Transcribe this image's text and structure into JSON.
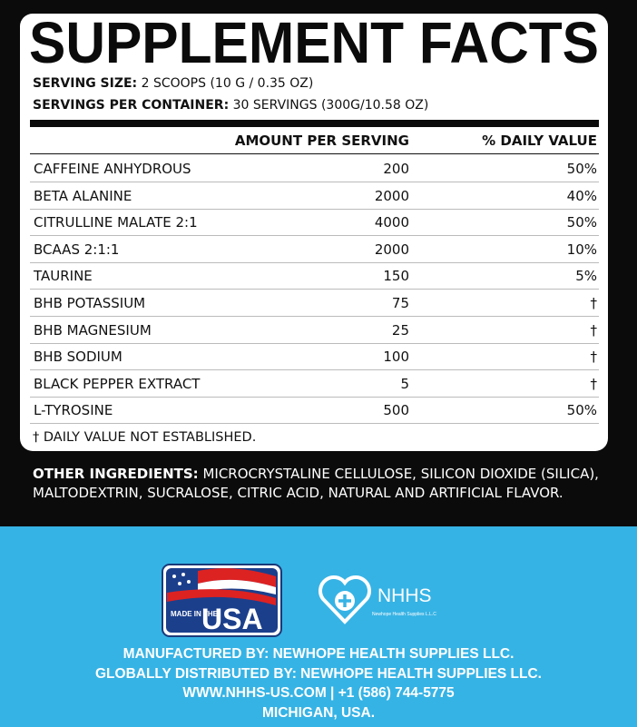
{
  "title": "SUPPLEMENT FACTS",
  "serving_size": {
    "label": "SERVING SIZE:",
    "value": "2 SCOOPS (10 G / 0.35 OZ)"
  },
  "servings_per_container": {
    "label": "SERVINGS PER CONTAINER:",
    "value": "30 SERVINGS (300G/10.58 OZ)"
  },
  "table": {
    "header": [
      "AMOUNT PER SERVING",
      "% DAILY VALUE"
    ],
    "rows": [
      [
        "CAFFEINE ANHYDROUS",
        200,
        "50%"
      ],
      [
        "BETA ALANINE",
        2000,
        "40%"
      ],
      [
        "CITRULLINE MALATE 2:1",
        4000,
        "50%"
      ],
      [
        "BCAAS 2:1:1",
        2000,
        "10%"
      ],
      [
        "TAURINE",
        150,
        "5%"
      ],
      [
        "BHB POTASSIUM",
        75,
        "†"
      ],
      [
        "BHB MAGNESIUM",
        25,
        "†"
      ],
      [
        "BHB SODIUM",
        100,
        "†"
      ],
      [
        "BLACK PEPPER EXTRACT",
        5,
        "†"
      ],
      [
        "L-TYROSINE",
        500,
        "50%"
      ]
    ]
  },
  "footnote": "† DAILY VALUE NOT ESTABLISHED.",
  "other_ingredients": {
    "label": "OTHER INGREDIENTS:",
    "text": "MICROCRYSTALINE CELLULOSE, SILICON DIOXIDE (SILICA), MALTODEXTRIN, SUCRALOSE, CITRIC ACID, NATURAL AND ARTIFICIAL FLAVOR."
  },
  "badge": {
    "made_in": "MADE IN THE",
    "country": "USA"
  },
  "logo": {
    "name": "NHHS",
    "company": "Newhope Health Supplies L.L.C"
  },
  "footer": [
    "MANUFACTURED BY: NEWHOPE HEALTH SUPPLIES LLC.",
    "GLOBALLY DISTRIBUTED BY: NEWHOPE HEALTH SUPPLIES LLC.",
    "WWW.NHHS-US.COM | +1 (586) 744-5775",
    "MICHIGAN, USA."
  ]
}
